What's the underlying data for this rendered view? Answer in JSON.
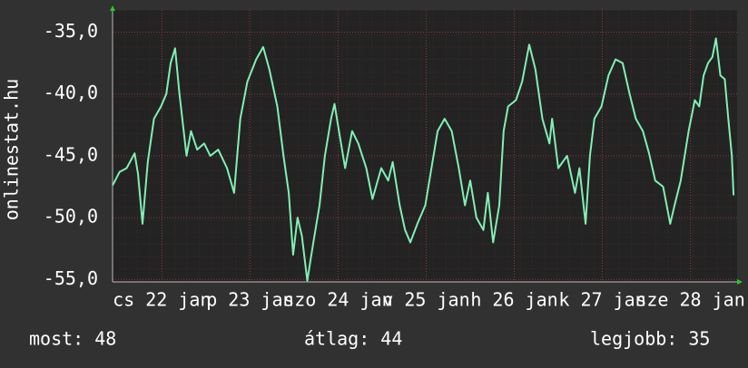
{
  "chart_data": {
    "type": "line",
    "ylabel": "onlinestat.hu",
    "color": "#80f0b4",
    "grid": true,
    "xlim": [
      0,
      7.09
    ],
    "ylim": [
      -55.2,
      -33.2
    ],
    "yticks": [
      {
        "value": -35,
        "label": "-35,0"
      },
      {
        "value": -40,
        "label": "-40,0"
      },
      {
        "value": -45,
        "label": "-45,0"
      },
      {
        "value": -50,
        "label": "-50,0"
      },
      {
        "value": -55,
        "label": "-55,0"
      }
    ],
    "xticks": [
      {
        "value": 0.56,
        "label": "cs 22 jan"
      },
      {
        "value": 1.56,
        "label": "p 23 jan"
      },
      {
        "value": 2.56,
        "label": "szo 24 jan"
      },
      {
        "value": 3.56,
        "label": "v 25 jan"
      },
      {
        "value": 4.56,
        "label": "h 26 jan"
      },
      {
        "value": 5.56,
        "label": "k 27 jan"
      },
      {
        "value": 6.56,
        "label": "sze 28 jan"
      }
    ],
    "x": [
      0.0,
      0.08,
      0.16,
      0.25,
      0.29,
      0.34,
      0.4,
      0.47,
      0.55,
      0.61,
      0.66,
      0.71,
      0.76,
      0.84,
      0.89,
      0.96,
      1.04,
      1.11,
      1.2,
      1.3,
      1.38,
      1.45,
      1.53,
      1.63,
      1.71,
      1.78,
      1.87,
      1.94,
      2.0,
      2.05,
      2.1,
      2.15,
      2.21,
      2.28,
      2.35,
      2.41,
      2.48,
      2.52,
      2.57,
      2.64,
      2.72,
      2.79,
      2.88,
      2.95,
      3.05,
      3.13,
      3.18,
      3.26,
      3.32,
      3.38,
      3.46,
      3.55,
      3.62,
      3.69,
      3.77,
      3.85,
      3.93,
      4.0,
      4.06,
      4.13,
      4.21,
      4.26,
      4.32,
      4.39,
      4.44,
      4.49,
      4.58,
      4.65,
      4.73,
      4.8,
      4.88,
      4.96,
      4.99,
      5.06,
      5.16,
      5.25,
      5.3,
      5.37,
      5.42,
      5.47,
      5.55,
      5.63,
      5.71,
      5.79,
      5.87,
      5.94,
      6.02,
      6.09,
      6.16,
      6.25,
      6.33,
      6.38,
      6.45,
      6.54,
      6.61,
      6.66,
      6.71,
      6.76,
      6.81,
      6.85,
      6.9,
      6.95,
      6.99,
      7.03,
      7.05
    ],
    "values": [
      -47.4,
      -46.3,
      -46.0,
      -44.8,
      -46.5,
      -50.5,
      -45.5,
      -42.0,
      -41.0,
      -40.0,
      -37.5,
      -36.3,
      -40.0,
      -45.0,
      -43.0,
      -44.5,
      -44.0,
      -45.0,
      -44.5,
      -46.0,
      -48.0,
      -42.0,
      -39.0,
      -37.2,
      -36.2,
      -38.0,
      -41.0,
      -45.0,
      -48.0,
      -53.0,
      -50.0,
      -51.5,
      -55.1,
      -52.0,
      -49.0,
      -45.0,
      -42.0,
      -40.8,
      -43.0,
      -46.0,
      -43.0,
      -44.0,
      -46.0,
      -48.5,
      -46.0,
      -47.0,
      -45.5,
      -49.0,
      -51.0,
      -52.0,
      -50.5,
      -49.0,
      -46.0,
      -43.0,
      -42.0,
      -43.0,
      -46.0,
      -49.0,
      -47.0,
      -50.0,
      -51.0,
      -48.0,
      -52.0,
      -49.0,
      -43.0,
      -41.0,
      -40.5,
      -39.0,
      -36.0,
      -38.0,
      -42.0,
      -44.0,
      -42.0,
      -46.0,
      -45.0,
      -48.0,
      -46.0,
      -50.5,
      -45.0,
      -42.0,
      -41.0,
      -38.5,
      -37.2,
      -37.5,
      -40.0,
      -42.0,
      -43.0,
      -44.8,
      -47.0,
      -47.5,
      -50.5,
      -49.0,
      -47.0,
      -43.0,
      -40.5,
      -41.0,
      -38.5,
      -37.5,
      -37.0,
      -35.5,
      -38.5,
      -38.8,
      -42.0,
      -45.0,
      -48.2
    ],
    "stats": [
      "most: 48",
      "átlag: 44",
      "legjobb: 35"
    ]
  }
}
